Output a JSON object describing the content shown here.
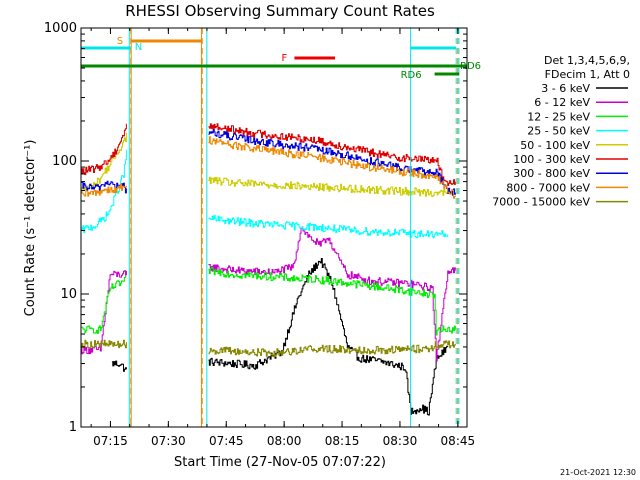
{
  "chart_data": {
    "type": "line",
    "title": "RHESSI Observing Summary Count Rates",
    "xlabel": "Start Time (27-Nov-05 07:07:22)",
    "ylabel": "Count Rate (s⁻¹ detector⁻¹)",
    "yscale": "log",
    "xlim_minutes": [
      0,
      100
    ],
    "ylim": [
      1,
      1000
    ],
    "x_ticks": [
      {
        "t": 7.63,
        "label": "07:15"
      },
      {
        "t": 22.63,
        "label": "07:30"
      },
      {
        "t": 37.63,
        "label": "07:45"
      },
      {
        "t": 52.63,
        "label": "08:00"
      },
      {
        "t": 67.63,
        "label": "08:15"
      },
      {
        "t": 82.63,
        "label": "08:30"
      },
      {
        "t": 97.63,
        "label": "08:45"
      }
    ],
    "y_ticks": [
      {
        "v": 1,
        "label": "1"
      },
      {
        "v": 10,
        "label": "10"
      },
      {
        "v": 100,
        "label": "100"
      },
      {
        "v": 1000,
        "label": "1000"
      }
    ],
    "grid": false,
    "legend": {
      "placement": "right",
      "header1": "Det 1,3,4,5,6,9,",
      "header2": "FDecim 1, Att 0"
    },
    "flags": {
      "saa_label": "S",
      "night_label": "N",
      "flare_label": "F",
      "rd_label": "RD6",
      "saa_span": [
        12.9,
        31.4
      ],
      "night_span": [
        0,
        12.9
      ],
      "night_span2": [
        85.4,
        97.2
      ],
      "flare_span": [
        55.3,
        65.8
      ],
      "rd_span": [
        0,
        100
      ],
      "rd_span2": [
        91.6,
        98.0
      ]
    },
    "boundaries": {
      "cyan_solid": [
        0,
        12.5,
        32.6,
        85.4
      ],
      "orange_solid": [
        13.0,
        31.2
      ],
      "orange_dashed": [
        12.9,
        31.4
      ],
      "cyan_dashed": [
        97.2,
        97.9
      ],
      "orange_dashed_end": [
        97.6
      ]
    },
    "series": [
      {
        "name": "3 - 6 keV",
        "color": "#000000",
        "points": [
          [
            8,
            3
          ],
          [
            10,
            3
          ],
          [
            12,
            2.6
          ],
          [
            33,
            3.1
          ],
          [
            45,
            2.9
          ],
          [
            52,
            3.7
          ],
          [
            56,
            9
          ],
          [
            59,
            14
          ],
          [
            62,
            18
          ],
          [
            65,
            12
          ],
          [
            67,
            7
          ],
          [
            69,
            4
          ],
          [
            72,
            3.3
          ],
          [
            78,
            3.1
          ],
          [
            84,
            2.8
          ],
          [
            85.4,
            1.3
          ],
          [
            88,
            1.4
          ],
          [
            90,
            1.3
          ],
          [
            92,
            3.2
          ],
          [
            95,
            4
          ]
        ]
      },
      {
        "name": "6 - 12 keV",
        "color": "#cc00cc",
        "points": [
          [
            0,
            3.8
          ],
          [
            5,
            3.8
          ],
          [
            7.5,
            14
          ],
          [
            10,
            14
          ],
          [
            12,
            14
          ],
          [
            33,
            16
          ],
          [
            40,
            15
          ],
          [
            50,
            14.5
          ],
          [
            55,
            16
          ],
          [
            57,
            32
          ],
          [
            59,
            27
          ],
          [
            62,
            23
          ],
          [
            64,
            27
          ],
          [
            66,
            20
          ],
          [
            69,
            14
          ],
          [
            75,
            12.5
          ],
          [
            85,
            12
          ],
          [
            91,
            11
          ],
          [
            92,
            3.2
          ],
          [
            95,
            15
          ],
          [
            97,
            15
          ]
        ]
      },
      {
        "name": "12 - 25 keV",
        "color": "#00ee00",
        "points": [
          [
            0,
            5.4
          ],
          [
            5,
            5.4
          ],
          [
            7.5,
            11
          ],
          [
            10,
            12
          ],
          [
            12,
            13
          ],
          [
            33,
            15
          ],
          [
            40,
            14
          ],
          [
            50,
            13.5
          ],
          [
            56,
            13
          ],
          [
            60,
            13
          ],
          [
            70,
            12
          ],
          [
            80,
            11
          ],
          [
            90,
            10
          ],
          [
            91.5,
            10
          ],
          [
            92,
            5.2
          ],
          [
            95,
            5.5
          ],
          [
            97,
            5.4
          ]
        ]
      },
      {
        "name": "25 - 50 keV",
        "color": "#00ffff",
        "points": [
          [
            0,
            30
          ],
          [
            4,
            33
          ],
          [
            7,
            40
          ],
          [
            9,
            55
          ],
          [
            11,
            80
          ],
          [
            12,
            130
          ],
          [
            33,
            37
          ],
          [
            40,
            35
          ],
          [
            50,
            33
          ],
          [
            60,
            32
          ],
          [
            70,
            30
          ],
          [
            80,
            29
          ],
          [
            90,
            28
          ],
          [
            92,
            28
          ],
          [
            95,
            28
          ]
        ]
      },
      {
        "name": "50 - 100 keV",
        "color": "#cccc00",
        "points": [
          [
            0,
            60
          ],
          [
            4,
            68
          ],
          [
            7,
            90
          ],
          [
            9,
            110
          ],
          [
            11,
            140
          ],
          [
            12,
            160
          ],
          [
            33,
            72
          ],
          [
            40,
            68
          ],
          [
            50,
            66
          ],
          [
            60,
            64
          ],
          [
            70,
            62
          ],
          [
            80,
            60
          ],
          [
            90,
            58
          ],
          [
            92,
            58
          ],
          [
            95,
            58
          ]
        ]
      },
      {
        "name": "100 - 300 keV",
        "color": "#dd0000",
        "points": [
          [
            0,
            83
          ],
          [
            4,
            88
          ],
          [
            7,
            100
          ],
          [
            9,
            120
          ],
          [
            11,
            160
          ],
          [
            12,
            190
          ],
          [
            33,
            185
          ],
          [
            40,
            170
          ],
          [
            50,
            155
          ],
          [
            60,
            145
          ],
          [
            70,
            125
          ],
          [
            80,
            108
          ],
          [
            90,
            102
          ],
          [
            92,
            103
          ],
          [
            94,
            70
          ],
          [
            97,
            70
          ]
        ]
      },
      {
        "name": "300 - 800 keV",
        "color": "#0000dd",
        "points": [
          [
            0,
            65
          ],
          [
            4,
            62
          ],
          [
            7,
            70
          ],
          [
            9,
            64
          ],
          [
            11,
            65
          ],
          [
            12,
            58
          ],
          [
            33,
            165
          ],
          [
            40,
            150
          ],
          [
            50,
            135
          ],
          [
            60,
            124
          ],
          [
            70,
            108
          ],
          [
            80,
            92
          ],
          [
            90,
            82
          ],
          [
            92,
            82
          ],
          [
            95,
            60
          ],
          [
            97,
            58
          ]
        ]
      },
      {
        "name": "800 - 7000 keV",
        "color": "#ee8800",
        "points": [
          [
            0,
            55
          ],
          [
            4,
            58
          ],
          [
            7,
            62
          ],
          [
            9,
            60
          ],
          [
            11,
            65
          ],
          [
            12,
            62
          ],
          [
            33,
            145
          ],
          [
            40,
            130
          ],
          [
            50,
            118
          ],
          [
            60,
            108
          ],
          [
            70,
            95
          ],
          [
            80,
            85
          ],
          [
            90,
            78
          ],
          [
            92,
            78
          ],
          [
            95,
            60
          ],
          [
            97,
            55
          ]
        ]
      },
      {
        "name": "7000 - 15000 keV",
        "color": "#888800",
        "points": [
          [
            0,
            4.2
          ],
          [
            5,
            4.2
          ],
          [
            7.5,
            4.2
          ],
          [
            10,
            4.2
          ],
          [
            12,
            4.2
          ],
          [
            33,
            3.8
          ],
          [
            40,
            3.7
          ],
          [
            50,
            3.6
          ],
          [
            60,
            3.9
          ],
          [
            70,
            3.8
          ],
          [
            80,
            3.8
          ],
          [
            90,
            3.9
          ],
          [
            92,
            4.1
          ],
          [
            95,
            4.2
          ],
          [
            97,
            4.2
          ]
        ]
      }
    ],
    "footer_date": "21-Oct-2021 12:30"
  }
}
